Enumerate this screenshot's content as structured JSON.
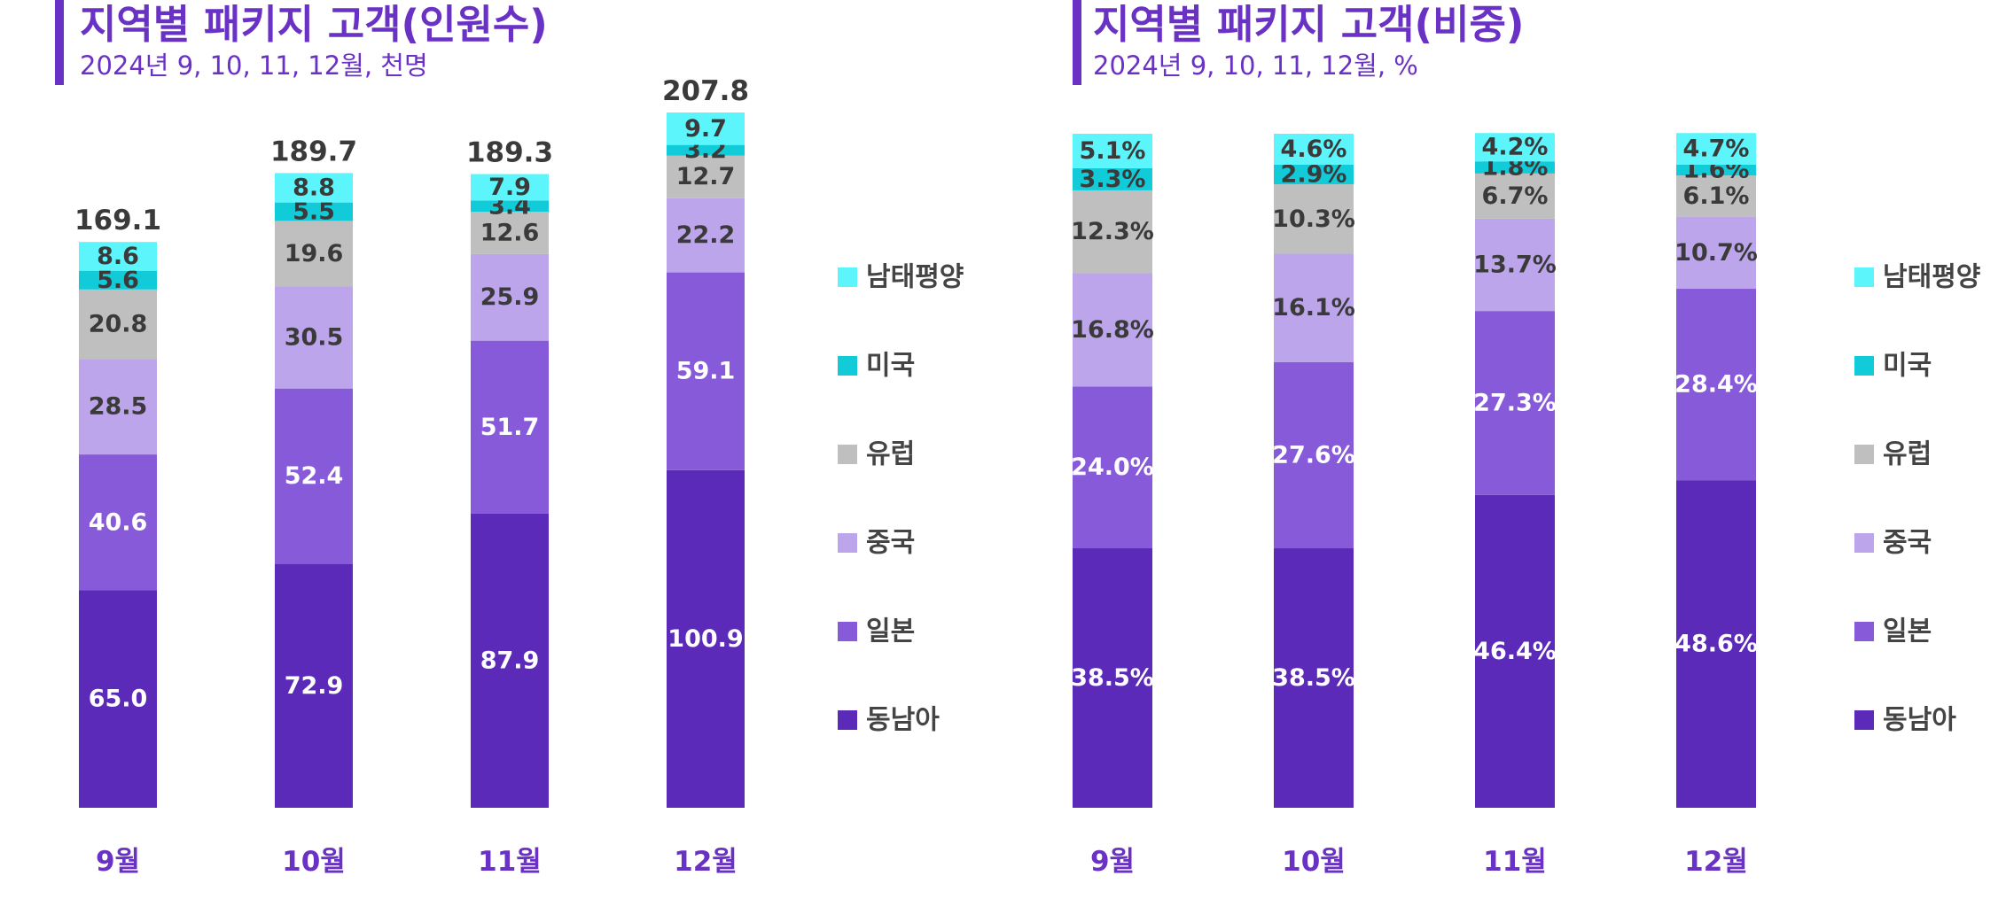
{
  "colors": {
    "동남아": "#5b2ab8",
    "일본": "#875ad9",
    "중국": "#bca5ea",
    "유럽": "#bfbfbf",
    "미국": "#11cbd9",
    "남태평양": "#5cf5fb",
    "title": "#6a32c4"
  },
  "legend": [
    "남태평양",
    "미국",
    "유럽",
    "중국",
    "일본",
    "동남아"
  ],
  "chart_data": [
    {
      "type": "bar",
      "stacked": true,
      "title": "지역별 패키지 고객(인원수)",
      "subtitle": "2024년 9, 10, 11, 12월, 천명",
      "categories": [
        "9월",
        "10월",
        "11월",
        "12월"
      ],
      "series": [
        {
          "name": "동남아",
          "values": [
            65.0,
            72.9,
            87.9,
            100.9
          ],
          "labels": [
            "65.0",
            "72.9",
            "87.9",
            "100.9"
          ]
        },
        {
          "name": "일본",
          "values": [
            40.6,
            52.4,
            51.7,
            59.1
          ],
          "labels": [
            "40.6",
            "52.4",
            "51.7",
            "59.1"
          ]
        },
        {
          "name": "중국",
          "values": [
            28.5,
            30.5,
            25.9,
            22.2
          ],
          "labels": [
            "28.5",
            "30.5",
            "25.9",
            "22.2"
          ]
        },
        {
          "name": "유럽",
          "values": [
            20.8,
            19.6,
            12.6,
            12.7
          ],
          "labels": [
            "20.8",
            "19.6",
            "12.6",
            "12.7"
          ]
        },
        {
          "name": "미국",
          "values": [
            5.6,
            5.5,
            3.4,
            3.2
          ],
          "labels": [
            "5.6",
            "5.5",
            "3.4",
            "3.2"
          ]
        },
        {
          "name": "남태평양",
          "values": [
            8.6,
            8.8,
            7.9,
            9.7
          ],
          "labels": [
            "8.6",
            "8.8",
            "7.9",
            "9.7"
          ]
        }
      ],
      "totals": [
        "169.1",
        "189.7",
        "189.3",
        "207.8"
      ],
      "ylim": [
        0,
        210
      ],
      "grid": false,
      "legend_position": "right"
    },
    {
      "type": "bar",
      "stacked": true,
      "title": "지역별 패키지 고객(비중)",
      "subtitle": "2024년 9, 10, 11, 12월, %",
      "categories": [
        "9월",
        "10월",
        "11월",
        "12월"
      ],
      "series": [
        {
          "name": "동남아",
          "values": [
            38.5,
            38.5,
            46.4,
            48.6
          ],
          "labels": [
            "38.5%",
            "38.5%",
            "46.4%",
            "48.6%"
          ]
        },
        {
          "name": "일본",
          "values": [
            24.0,
            27.6,
            27.3,
            28.4
          ],
          "labels": [
            "24.0%",
            "27.6%",
            "27.3%",
            "28.4%"
          ]
        },
        {
          "name": "중국",
          "values": [
            16.8,
            16.1,
            13.7,
            10.7
          ],
          "labels": [
            "16.8%",
            "16.1%",
            "13.7%",
            "10.7%"
          ]
        },
        {
          "name": "유럽",
          "values": [
            12.3,
            10.3,
            6.7,
            6.1
          ],
          "labels": [
            "12.3%",
            "10.3%",
            "6.7%",
            "6.1%"
          ]
        },
        {
          "name": "미국",
          "values": [
            3.3,
            2.9,
            1.8,
            1.6
          ],
          "labels": [
            "3.3%",
            "2.9%",
            "1.8%",
            "1.6%"
          ]
        },
        {
          "name": "남태평양",
          "values": [
            5.1,
            4.6,
            4.2,
            4.7
          ],
          "labels": [
            "5.1%",
            "4.6%",
            "4.2%",
            "4.7%"
          ]
        }
      ],
      "ylim": [
        0,
        100
      ],
      "grid": false,
      "legend_position": "right"
    }
  ]
}
